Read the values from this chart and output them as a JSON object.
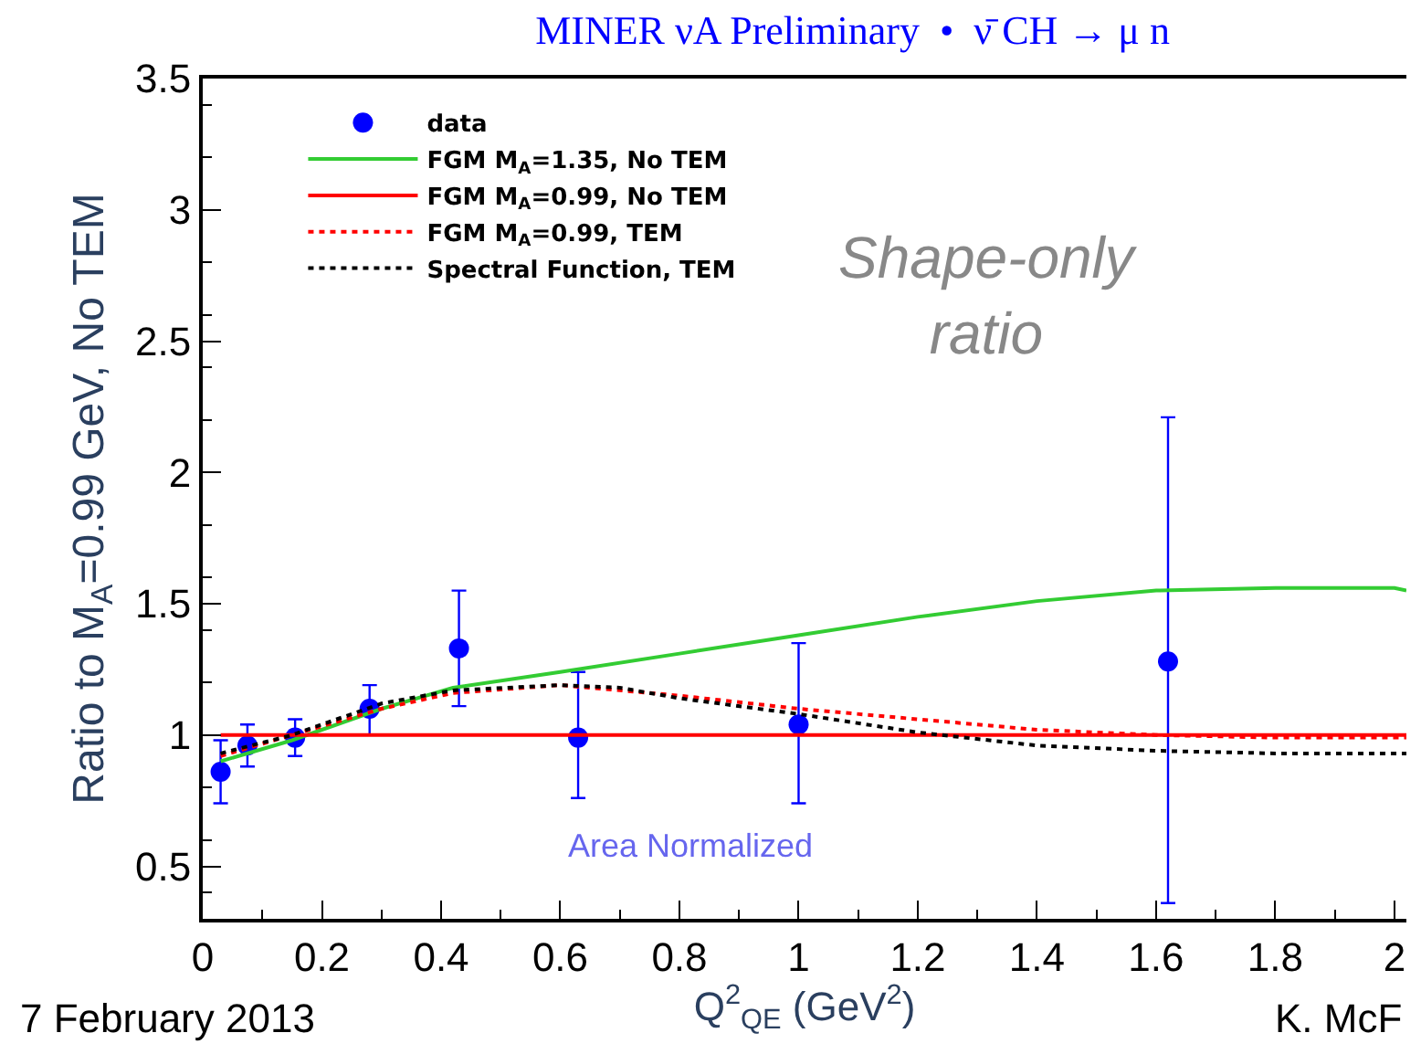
{
  "chart_data": {
    "type": "scatter",
    "title": "MINER νA Preliminary  •  ν̄ CH → μ n",
    "xlabel": "Q$^{2}$$_{QE}$ (GeV$^{2}$)",
    "ylabel": "Ratio to M$_{A}$=0.99 GeV, No TEM",
    "xlim": [
      0,
      2.02
    ],
    "ylim": [
      0.3,
      3.5
    ],
    "xticks": [
      0,
      0.2,
      0.4,
      0.6,
      0.8,
      1,
      1.2,
      1.4,
      1.6,
      1.8,
      2
    ],
    "yticks": [
      0.5,
      1,
      1.5,
      2,
      2.5,
      3,
      3.5
    ],
    "legend": "top left",
    "series": [
      {
        "name": "data",
        "color": "#0000ff",
        "marker": "circle",
        "x": [
          0.03,
          0.075,
          0.155,
          0.28,
          0.43,
          0.63,
          1.0,
          1.62
        ],
        "values": [
          0.86,
          0.96,
          0.99,
          1.1,
          1.33,
          0.99,
          1.04,
          1.28
        ],
        "errors": [
          [
            0.74,
            0.98
          ],
          [
            0.88,
            1.04
          ],
          [
            0.92,
            1.06
          ],
          [
            1.0,
            1.19
          ],
          [
            1.11,
            1.55
          ],
          [
            0.76,
            1.24
          ],
          [
            0.74,
            1.35
          ],
          [
            0.36,
            2.21
          ]
        ]
      },
      {
        "name": "FGM M$_{A}$=1.35, No TEM",
        "type": "line",
        "color": "#33cc33",
        "line_style": "solid",
        "x": [
          0.03,
          0.15,
          0.3,
          0.42,
          0.6,
          0.8,
          1.0,
          1.2,
          1.4,
          1.6,
          1.8,
          2.0,
          2.02
        ],
        "values": [
          0.9,
          0.98,
          1.1,
          1.18,
          1.24,
          1.31,
          1.38,
          1.45,
          1.51,
          1.55,
          1.56,
          1.56,
          1.55
        ]
      },
      {
        "name": "FGM M$_{A}$=0.99, No TEM",
        "type": "line",
        "color": "#ff0000",
        "line_style": "solid",
        "x": [
          0.03,
          2.02
        ],
        "values": [
          1,
          1
        ]
      },
      {
        "name": "FGM M$_{A}$=0.99, TEM",
        "type": "line",
        "color": "#ff0000",
        "line_style": "dotted",
        "x": [
          0.03,
          0.15,
          0.3,
          0.42,
          0.6,
          0.8,
          1.0,
          1.2,
          1.4,
          1.6,
          1.8,
          2.0,
          2.02
        ],
        "values": [
          0.92,
          1.0,
          1.1,
          1.16,
          1.19,
          1.15,
          1.1,
          1.06,
          1.02,
          1.0,
          0.99,
          0.99,
          0.99
        ]
      },
      {
        "name": "Spectral Function, TEM",
        "type": "line",
        "color": "#000000",
        "line_style": "dotted",
        "x": [
          0.03,
          0.15,
          0.3,
          0.42,
          0.6,
          0.7,
          0.8,
          1.0,
          1.2,
          1.4,
          1.6,
          1.8,
          2.0,
          2.02
        ],
        "values": [
          0.93,
          1.0,
          1.12,
          1.17,
          1.19,
          1.18,
          1.14,
          1.08,
          1.01,
          0.96,
          0.94,
          0.93,
          0.93,
          0.93
        ]
      }
    ],
    "annotations": [
      "Shape-only ratio",
      "Area Normalized",
      "7 February 2013",
      "K. McF"
    ]
  }
}
